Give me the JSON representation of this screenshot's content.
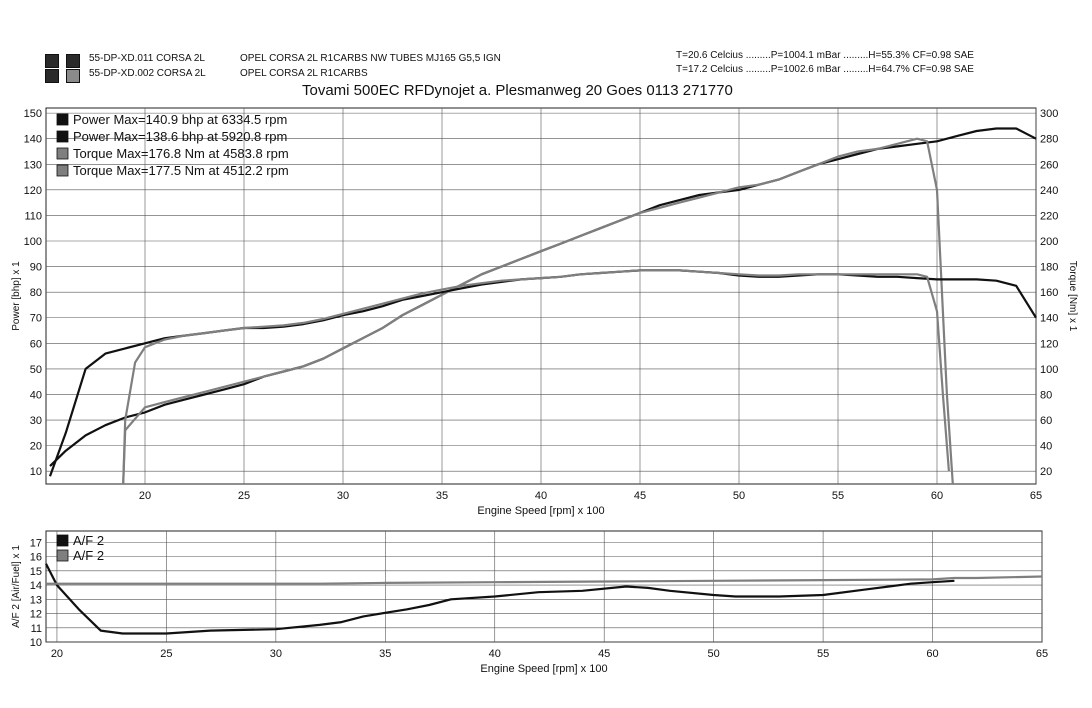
{
  "runs": [
    {
      "id": "55-DP-XD.011 CORSA 2L",
      "desc": "OPEL CORSA 2L R1CARBS NW TUBES MJ165 G5,5 IGN"
    },
    {
      "id": "55-DP-XD.002 CORSA 2L",
      "desc": "OPEL CORSA 2L R1CARBS"
    }
  ],
  "conditions": [
    "T=20.6 Celcius .........P=1004.1 mBar .........H=55.3% CF=0.98 SAE",
    "T=17.2 Celcius .........P=1002.6 mBar .........H=64.7% CF=0.98 SAE"
  ],
  "header_title": "Tovami 500EC RFDynojet  a. Plesmanweg  20 Goes 0113 271770",
  "colors": {
    "run1": "#111111",
    "run2": "#7f7f7f",
    "grid": "#555555"
  },
  "chart_data": [
    {
      "type": "line",
      "title": "",
      "xlabel": "Engine Speed [rpm] x 100",
      "ylabel": "Power [bhp] x 1",
      "y2label": "Torque [Nm] x 1",
      "xlim": [
        15,
        65
      ],
      "ylim": [
        5,
        152
      ],
      "y2lim": [
        10,
        304
      ],
      "xticks": [
        "20",
        "25",
        "30",
        "35",
        "40",
        "45",
        "50",
        "55",
        "60",
        "65"
      ],
      "yticks": [
        "10",
        "20",
        "30",
        "40",
        "50",
        "60",
        "70",
        "80",
        "90",
        "100",
        "110",
        "120",
        "130",
        "140",
        "150"
      ],
      "y2ticks": [
        "20",
        "40",
        "60",
        "80",
        "100",
        "120",
        "140",
        "160",
        "180",
        "200",
        "220",
        "240",
        "260",
        "280",
        "300"
      ],
      "legend": [
        "Power  Max=140.9 bhp at 6334.5 rpm",
        "Power  Max=138.6 bhp at 5920.8 rpm",
        "Torque  Max=176.8 Nm at 4583.8 rpm",
        "Torque  Max=177.5 Nm at 4512.2 rpm"
      ],
      "series": [
        {
          "axis": "power",
          "run": 1,
          "x": [
            15.2,
            16,
            17,
            18,
            19,
            20,
            21,
            22,
            23,
            24,
            25,
            26,
            27,
            28,
            29,
            30,
            31,
            32,
            33,
            34,
            35,
            36,
            37,
            38,
            39,
            40,
            41,
            42,
            43,
            44,
            45,
            46,
            47,
            48,
            49,
            50,
            51,
            52,
            53,
            54,
            55,
            56,
            57,
            58,
            59,
            60,
            61,
            62,
            63,
            64,
            65
          ],
          "y": [
            12,
            18,
            24,
            28,
            31,
            33,
            36,
            38,
            40,
            42,
            44,
            47,
            49,
            51,
            54,
            58,
            62,
            66,
            71,
            75,
            79,
            83,
            87,
            90,
            93,
            96,
            99,
            102,
            105,
            108,
            111,
            114,
            116,
            118,
            119,
            120,
            122,
            124,
            127,
            130,
            132,
            134,
            136,
            137,
            138,
            139,
            141,
            143,
            144,
            144,
            140
          ]
        },
        {
          "axis": "power",
          "run": 2,
          "x": [
            18.9,
            19,
            20,
            21,
            22,
            23,
            24,
            25,
            26,
            27,
            28,
            29,
            30,
            31,
            32,
            33,
            34,
            35,
            36,
            37,
            38,
            39,
            40,
            41,
            42,
            43,
            44,
            45,
            46,
            47,
            48,
            49,
            50,
            51,
            52,
            53,
            54,
            55,
            56,
            57,
            58,
            59,
            59.5,
            60,
            60.5,
            60.8
          ],
          "y": [
            5,
            26,
            35,
            37,
            39,
            41,
            43,
            45,
            47,
            49,
            51,
            54,
            58,
            62,
            66,
            71,
            75,
            79,
            83,
            87,
            90,
            93,
            96,
            99,
            102,
            105,
            108,
            111,
            113,
            115,
            117,
            119,
            121,
            122,
            124,
            127,
            130,
            133,
            135,
            136,
            138,
            140,
            139,
            120,
            40,
            5
          ]
        },
        {
          "axis": "torque",
          "run": 1,
          "x": [
            15.2,
            16,
            17,
            18,
            19,
            20,
            21,
            22,
            23,
            24,
            25,
            26,
            27,
            28,
            29,
            30,
            31,
            32,
            33,
            34,
            35,
            36,
            37,
            38,
            39,
            40,
            41,
            42,
            43,
            44,
            45,
            46,
            47,
            48,
            49,
            50,
            51,
            52,
            53,
            54,
            55,
            56,
            57,
            58,
            59,
            60,
            61,
            62,
            63,
            64,
            65
          ],
          "y": [
            16,
            50,
            100,
            112,
            116,
            120,
            124,
            126,
            128,
            130,
            132,
            132,
            133,
            135,
            138,
            142,
            145,
            149,
            154,
            157,
            160,
            163,
            166,
            168,
            170,
            171,
            172,
            174,
            175,
            176,
            177,
            177,
            177,
            176,
            175,
            173,
            172,
            172,
            173,
            174,
            174,
            173,
            172,
            172,
            171,
            170,
            170,
            170,
            169,
            165,
            140
          ]
        },
        {
          "axis": "torque",
          "run": 2,
          "x": [
            18.9,
            19,
            19.5,
            20,
            21,
            22,
            23,
            24,
            25,
            26,
            27,
            28,
            29,
            30,
            31,
            32,
            33,
            34,
            35,
            36,
            37,
            38,
            39,
            40,
            41,
            42,
            43,
            44,
            45,
            46,
            47,
            48,
            49,
            50,
            51,
            52,
            53,
            54,
            55,
            56,
            57,
            58,
            59,
            59.5,
            60,
            60.3,
            60.6
          ],
          "y": [
            10,
            60,
            105,
            117,
            123,
            126,
            128,
            130,
            132,
            133,
            134,
            136,
            139,
            143,
            147,
            151,
            155,
            159,
            162,
            165,
            167,
            169,
            170,
            171,
            172,
            174,
            175,
            176,
            177,
            177,
            177,
            176,
            175,
            174,
            173,
            173,
            174,
            174,
            174,
            174,
            174,
            174,
            174,
            172,
            145,
            80,
            20
          ]
        }
      ]
    },
    {
      "type": "line",
      "title": "",
      "xlabel": "Engine Speed [rpm] x 100",
      "ylabel": "A/F 2 [Air/Fuel] x 1",
      "xlim": [
        19.5,
        65
      ],
      "ylim": [
        10,
        17.8
      ],
      "xticks": [
        "20",
        "25",
        "30",
        "35",
        "40",
        "45",
        "50",
        "55",
        "60",
        "65"
      ],
      "yticks": [
        "10",
        "11",
        "12",
        "13",
        "14",
        "15",
        "16",
        "17"
      ],
      "legend": [
        "A/F 2",
        "A/F 2"
      ],
      "series": [
        {
          "run": 1,
          "x": [
            19.5,
            20,
            21,
            22,
            23,
            25,
            27,
            30,
            32,
            33,
            34,
            36,
            37,
            38,
            40,
            42,
            44,
            46,
            47,
            48,
            50,
            51,
            53,
            55,
            57,
            59,
            60,
            61
          ],
          "y": [
            15.5,
            14,
            12.3,
            10.8,
            10.6,
            10.6,
            10.8,
            10.9,
            11.2,
            11.4,
            11.8,
            12.3,
            12.6,
            13,
            13.2,
            13.5,
            13.6,
            13.9,
            13.8,
            13.6,
            13.3,
            13.2,
            13.2,
            13.3,
            13.7,
            14.1,
            14.2,
            14.3
          ]
        },
        {
          "run": 2,
          "x": [
            19.5,
            22,
            25,
            28,
            30,
            32,
            35,
            40,
            45,
            50,
            55,
            60,
            61,
            62,
            65
          ],
          "y": [
            14.1,
            14.1,
            14.1,
            14.1,
            14.1,
            14.1,
            14.15,
            14.2,
            14.25,
            14.3,
            14.35,
            14.4,
            14.5,
            14.5,
            14.6
          ]
        }
      ]
    }
  ]
}
